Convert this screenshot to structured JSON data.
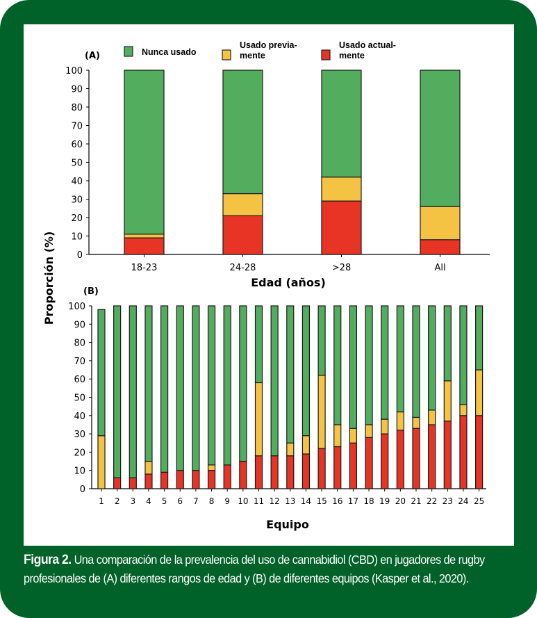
{
  "figure": {
    "caption_label": "Figura 2.",
    "caption_text": " Una comparación de la prevalencia del uso de cannabidiol (CBD) en jugadores de rugby profesionales de (A) diferentes rangos de edad y (B) de diferentes equipos (Kasper et al., 2020).",
    "shared_ylabel": "Proporción (%)"
  },
  "legend": [
    {
      "label_lines": [
        "Nunca usado"
      ],
      "color": "#52ae5e"
    },
    {
      "label_lines": [
        "Usado previa-",
        "mente"
      ],
      "color": "#f5c344"
    },
    {
      "label_lines": [
        "Usado actual-",
        "mente"
      ],
      "color": "#e83424"
    }
  ],
  "chart_data": [
    {
      "type": "bar",
      "stacked": true,
      "panel_label": "(A)",
      "title": "",
      "xlabel": "Edad (años)",
      "ylabel": "Proporción (%)",
      "ylim": [
        0,
        100
      ],
      "yticks": [
        0,
        10,
        20,
        30,
        40,
        50,
        60,
        70,
        80,
        90,
        100
      ],
      "grid": false,
      "legend_position": "top",
      "categories": [
        "18-23",
        "24-28",
        ">28",
        "All"
      ],
      "series": [
        {
          "name": "Usado actualmente",
          "color": "#e83424",
          "values": [
            9,
            21,
            29,
            8
          ]
        },
        {
          "name": "Usado previamente",
          "color": "#f5c344",
          "values": [
            2,
            12,
            13,
            18
          ]
        },
        {
          "name": "Nunca usado",
          "color": "#52ae5e",
          "values": [
            89,
            67,
            58,
            74
          ]
        }
      ]
    },
    {
      "type": "bar",
      "stacked": true,
      "panel_label": "(B)",
      "title": "",
      "xlabel": "Equipo",
      "ylabel": "Proporción (%)",
      "ylim": [
        0,
        100
      ],
      "yticks": [
        0,
        10,
        20,
        30,
        40,
        50,
        60,
        70,
        80,
        90,
        100
      ],
      "grid": false,
      "categories": [
        "1",
        "2",
        "3",
        "4",
        "5",
        "6",
        "7",
        "8",
        "9",
        "10",
        "11",
        "12",
        "13",
        "14",
        "15",
        "16",
        "17",
        "18",
        "19",
        "20",
        "21",
        "22",
        "23",
        "24",
        "25"
      ],
      "series": [
        {
          "name": "Usado actualmente",
          "color": "#e83424",
          "values": [
            0,
            6,
            6,
            8,
            9,
            10,
            10,
            10,
            13,
            15,
            18,
            18,
            18,
            19,
            22,
            23,
            25,
            28,
            30,
            32,
            33,
            35,
            37,
            40,
            40
          ]
        },
        {
          "name": "Usado previamente",
          "color": "#f5c344",
          "values": [
            29,
            0,
            0,
            7,
            0,
            0,
            0,
            3,
            0,
            0,
            40,
            0,
            7,
            10,
            40,
            12,
            8,
            7,
            8,
            10,
            6,
            8,
            22,
            6,
            25
          ]
        },
        {
          "name": "Nunca usado",
          "color": "#52ae5e",
          "values": [
            69,
            94,
            94,
            85,
            91,
            90,
            90,
            87,
            87,
            85,
            42,
            82,
            75,
            71,
            38,
            65,
            67,
            65,
            62,
            58,
            61,
            57,
            41,
            54,
            35
          ]
        }
      ]
    }
  ]
}
